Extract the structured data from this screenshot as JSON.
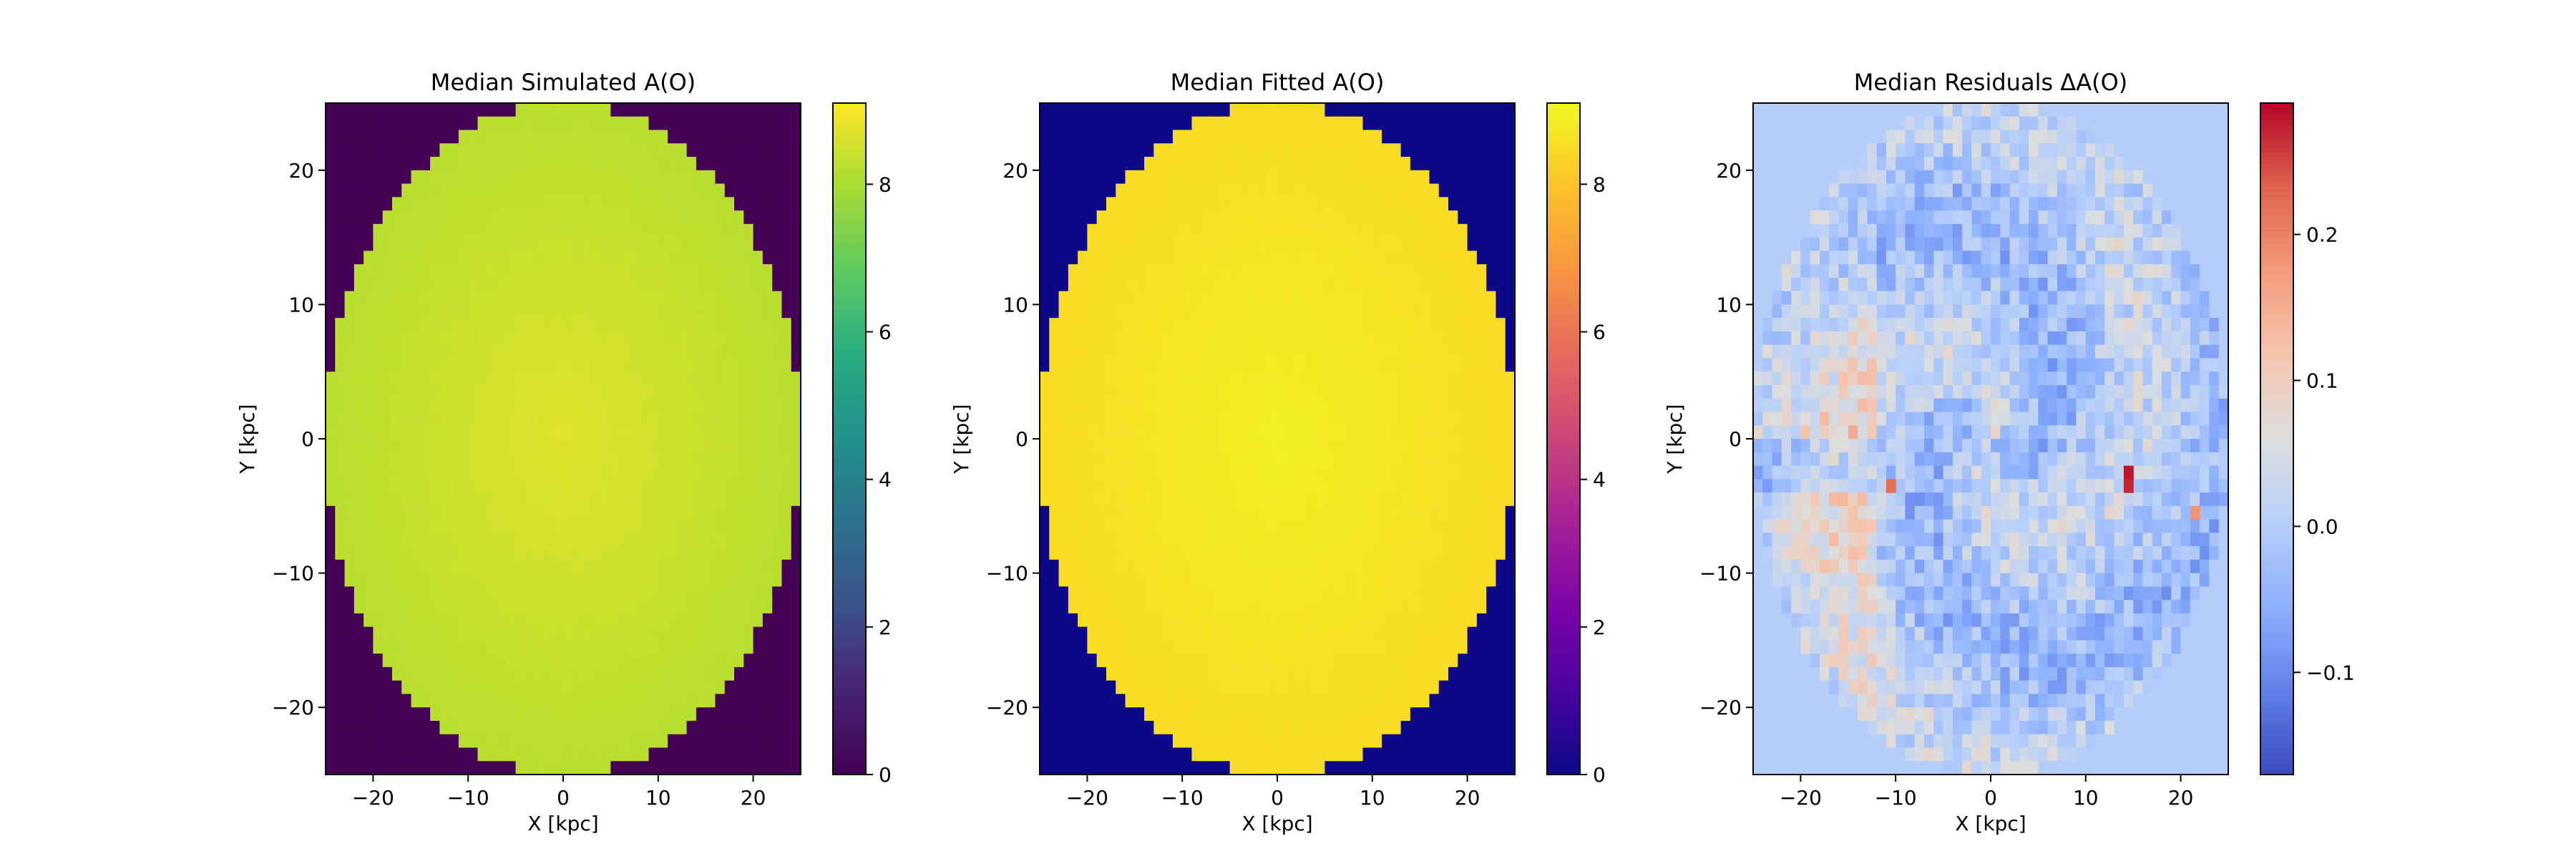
{
  "chart_data": [
    {
      "type": "heatmap",
      "title": "Median Simulated A(O)",
      "xlabel": "X [kpc]",
      "ylabel": "Y [kpc]",
      "xlim": [
        -25,
        25
      ],
      "ylim": [
        -25,
        25
      ],
      "xticks": [
        -20,
        -10,
        0,
        10,
        20
      ],
      "yticks": [
        -20,
        -10,
        0,
        10,
        20
      ],
      "colormap": "viridis",
      "colorbar_range": [
        0,
        9.1
      ],
      "colorbar_ticks": [
        0,
        2,
        4,
        6,
        8
      ],
      "outside_value": 0,
      "center_value": 8.7,
      "edge_value": 8.2,
      "grid": false
    },
    {
      "type": "heatmap",
      "title": "Median Fitted A(O)",
      "xlabel": "X [kpc]",
      "ylabel": "Y [kpc]",
      "xlim": [
        -25,
        25
      ],
      "ylim": [
        -25,
        25
      ],
      "xticks": [
        -20,
        -10,
        0,
        10,
        20
      ],
      "yticks": [
        -20,
        -10,
        0,
        10,
        20
      ],
      "colormap": "plasma",
      "colorbar_range": [
        0,
        9.1
      ],
      "colorbar_ticks": [
        0,
        2,
        4,
        6,
        8
      ],
      "outside_value": 0,
      "center_value": 8.9,
      "edge_value": 8.5,
      "grid": false
    },
    {
      "type": "heatmap",
      "title": "Median Residuals ΔA(O)",
      "xlabel": "X [kpc]",
      "ylabel": "Y [kpc]",
      "xlim": [
        -25,
        25
      ],
      "ylim": [
        -25,
        25
      ],
      "xticks": [
        -20,
        -10,
        0,
        10,
        20
      ],
      "yticks": [
        -20,
        -10,
        0,
        10,
        20
      ],
      "colormap": "coolwarm",
      "colorbar_range": [
        -0.17,
        0.29
      ],
      "colorbar_ticks": [
        -0.1,
        0.0,
        0.1,
        0.2
      ],
      "colorbar_tick_labels": [
        "−0.1",
        "0.0",
        "0.1",
        "0.2"
      ],
      "outside_value": 0.0,
      "grid": false
    }
  ]
}
